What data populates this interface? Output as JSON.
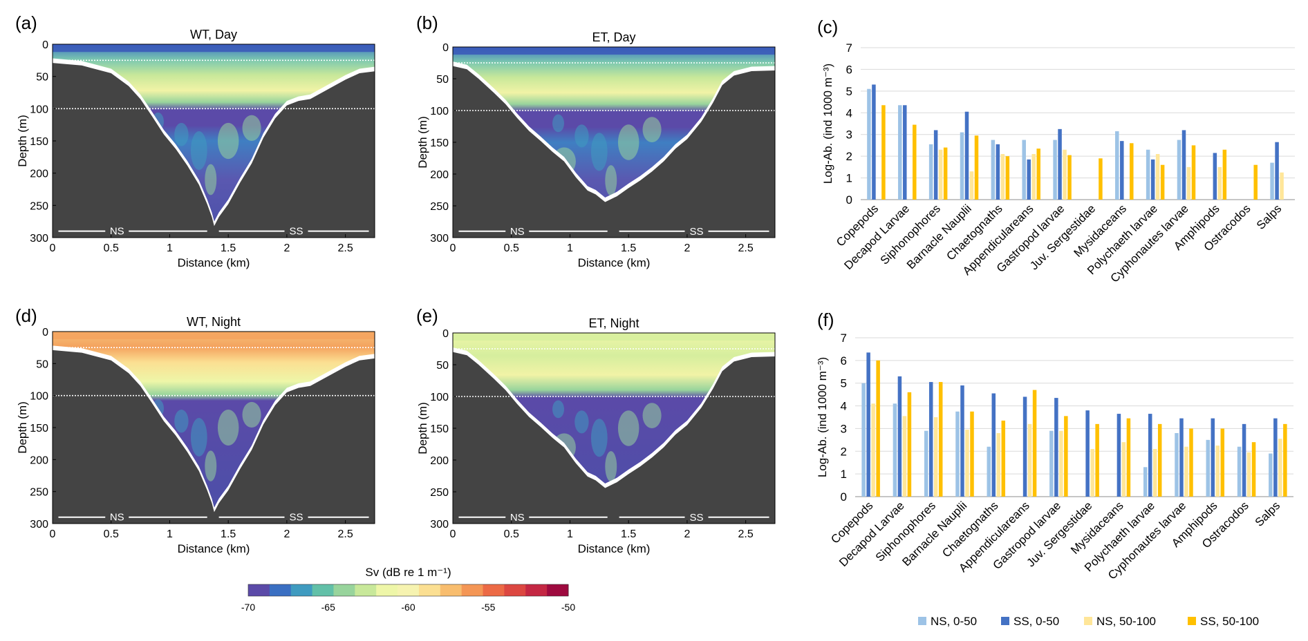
{
  "panels": {
    "a": {
      "letter": "(a)",
      "title": "WT, Day"
    },
    "b": {
      "letter": "(b)",
      "title": "ET, Day"
    },
    "d": {
      "letter": "(d)",
      "title": "WT, Night"
    },
    "e": {
      "letter": "(e)",
      "title": "ET, Night"
    },
    "c": {
      "letter": "(c)"
    },
    "f": {
      "letter": "(f)"
    }
  },
  "echogram_axes": {
    "xlabel": "Distance (km)",
    "ylabel": "Depth (m)",
    "xticks": [
      "0",
      "0.5",
      "1",
      "1.5",
      "2",
      "2.5"
    ],
    "yticks": [
      "0",
      "50",
      "100",
      "150",
      "200",
      "250",
      "300"
    ],
    "ns_label": "NS",
    "ss_label": "SS"
  },
  "colorbar": {
    "title": "Sv (dB re 1 m⁻¹)",
    "tick_labels": [
      "-70",
      "-65",
      "-60",
      "-55",
      "-50"
    ],
    "colors": [
      "#5b4aa8",
      "#3a6fc2",
      "#3f9bc0",
      "#62c0a8",
      "#98d49c",
      "#c8e89a",
      "#eef6a8",
      "#f6f3b0",
      "#fbdf92",
      "#f8bd6e",
      "#f49655",
      "#ec6a45",
      "#dc4741",
      "#c42743",
      "#9e0a3f"
    ]
  },
  "series_colors": {
    "NS, 0-50": "#9dc3e6",
    "SS, 0-50": "#4472c4",
    "NS, 50-100": "#ffe699",
    "SS, 50-100": "#ffc000"
  },
  "legend": [
    "NS, 0-50",
    "SS, 0-50",
    "NS, 50-100",
    "SS, 50-100"
  ],
  "chart_data": [
    {
      "panel": "c",
      "type": "bar",
      "ylabel": "Log-Ab. (ind 1000 m⁻³)",
      "ylim": [
        0,
        7
      ],
      "yticks": [
        "0",
        "1",
        "2",
        "3",
        "4",
        "5",
        "6",
        "7"
      ],
      "categories": [
        "Copepods",
        "Decapod Larvae",
        "Siphonophores",
        "Barnacle Nauplii",
        "Chaetognaths",
        "Appendiculareans",
        "Gastropod larvae",
        "Juv. Sergestidae",
        "Mysidaceans",
        "Polychaeth larvae",
        "Cyphonautes larvae",
        "Amphipods",
        "Ostracodos",
        "Salps"
      ],
      "series": [
        {
          "name": "NS, 0-50",
          "values": [
            5.1,
            4.35,
            2.55,
            3.1,
            2.75,
            2.75,
            2.75,
            0,
            3.15,
            2.3,
            2.75,
            0,
            0,
            1.7
          ]
        },
        {
          "name": "SS, 0-50",
          "values": [
            5.3,
            4.35,
            3.2,
            4.05,
            2.55,
            1.85,
            3.25,
            0,
            2.7,
            1.85,
            3.2,
            2.15,
            0,
            2.65
          ]
        },
        {
          "name": "NS, 50-100",
          "values": [
            0,
            0,
            2.3,
            1.3,
            2.1,
            2.1,
            2.3,
            0,
            0,
            2.1,
            1.5,
            1.5,
            0,
            1.25
          ]
        },
        {
          "name": "SS, 50-100",
          "values": [
            4.35,
            3.45,
            2.4,
            2.95,
            2.0,
            2.35,
            2.05,
            1.9,
            2.6,
            1.6,
            2.5,
            2.3,
            1.6,
            0
          ]
        }
      ]
    },
    {
      "panel": "f",
      "type": "bar",
      "ylabel": "Log-Ab. (ind 1000 m⁻³)",
      "ylim": [
        0,
        7
      ],
      "yticks": [
        "0",
        "1",
        "2",
        "3",
        "4",
        "5",
        "6",
        "7"
      ],
      "categories": [
        "Copepods",
        "Decapod Larvae",
        "Siphonophores",
        "Barnacle Nauplii",
        "Chaetognaths",
        "Appendiculareans",
        "Gastropod larvae",
        "Juv. Sergestidae",
        "Mysidaceans",
        "Polychaeth larvae",
        "Cyphonautes larvae",
        "Amphipods",
        "Ostracodos",
        "Salps"
      ],
      "series": [
        {
          "name": "NS, 0-50",
          "values": [
            5.0,
            4.1,
            2.9,
            3.75,
            2.2,
            0,
            2.9,
            0,
            0,
            1.3,
            2.8,
            2.5,
            2.2,
            1.9
          ]
        },
        {
          "name": "SS, 0-50",
          "values": [
            6.35,
            5.3,
            5.05,
            4.9,
            4.55,
            4.4,
            4.35,
            3.8,
            3.65,
            3.65,
            3.45,
            3.45,
            3.2,
            3.45
          ]
        },
        {
          "name": "NS, 50-100",
          "values": [
            4.1,
            3.55,
            3.5,
            2.95,
            2.8,
            3.2,
            2.9,
            2.1,
            2.4,
            2.1,
            2.2,
            2.25,
            1.95,
            2.55
          ]
        },
        {
          "name": "SS, 50-100",
          "values": [
            6.0,
            4.6,
            5.05,
            3.75,
            3.35,
            4.7,
            3.55,
            3.2,
            3.45,
            3.2,
            3.0,
            3.0,
            2.4,
            3.2
          ]
        }
      ]
    }
  ]
}
